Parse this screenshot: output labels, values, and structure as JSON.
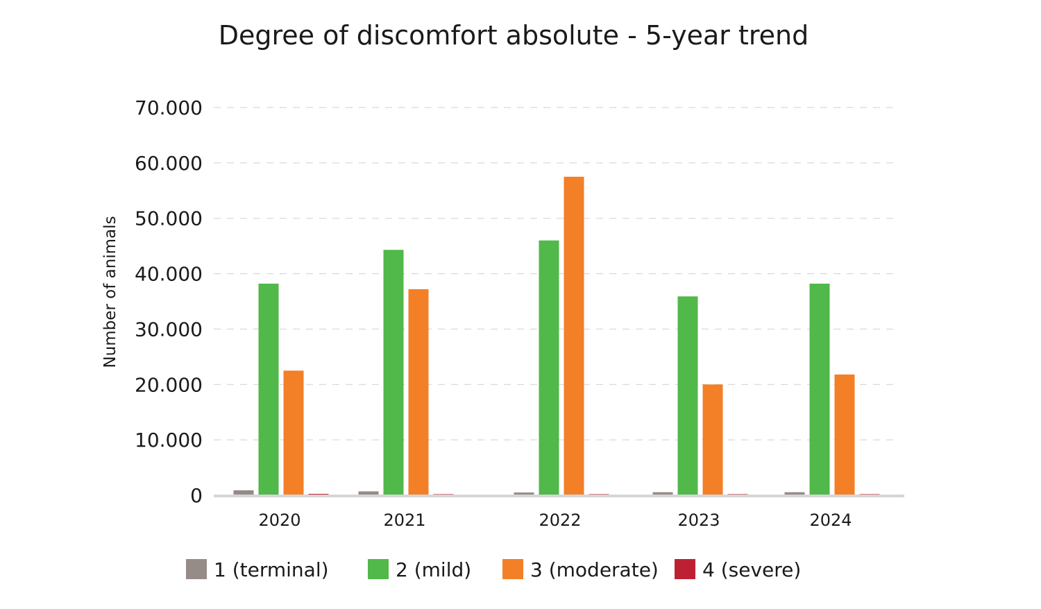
{
  "chart_data": {
    "type": "bar",
    "title": "Degree of discomfort absolute - 5-year trend",
    "ylabel": "Number of animals",
    "xlabel": "",
    "ylim": [
      0,
      70000
    ],
    "y_ticks": [
      0,
      10000,
      20000,
      30000,
      40000,
      50000,
      60000,
      70000
    ],
    "y_tick_labels": [
      "0",
      "10.000",
      "20.000",
      "30.000",
      "40.000",
      "50.000",
      "60.000",
      "70.000"
    ],
    "grid": true,
    "legend_position": "bottom",
    "categories": [
      "2020",
      "2021",
      "2022",
      "2023",
      "2024"
    ],
    "series": [
      {
        "name": "1 (terminal)",
        "color": "#958b87",
        "values": [
          900,
          700,
          500,
          550,
          550
        ]
      },
      {
        "name": "2 (mild)",
        "color": "#51b84a",
        "values": [
          38200,
          44300,
          46000,
          35900,
          38200
        ]
      },
      {
        "name": "3 (moderate)",
        "color": "#f37f27",
        "values": [
          22500,
          37200,
          57500,
          20000,
          21800
        ]
      },
      {
        "name": "4 (severe)",
        "color": "#be2033",
        "values": [
          250,
          200,
          200,
          200,
          200
        ]
      }
    ]
  }
}
